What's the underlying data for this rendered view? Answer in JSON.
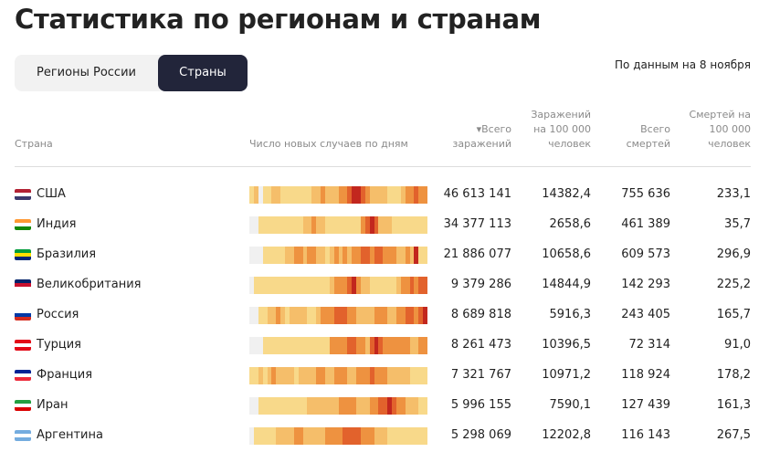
{
  "title": "Статистика по регионам и странам",
  "tabs": [
    {
      "label": "Регионы России"
    },
    {
      "label": "Страны"
    }
  ],
  "as_of": "По данным на 8 ноября",
  "headers": {
    "country": "Страна",
    "chart": "Число новых случаев по дням",
    "total": "▾Всего заражений",
    "per100k": "Заражений на 100 000 человек",
    "deaths": "Всего смертей",
    "deaths100k": "Смертей на 100 000 человек"
  },
  "colors": {
    "levels": [
      "#f0f0f0",
      "#f8d98a",
      "#f5be6a",
      "#ee9240",
      "#e2622c",
      "#c2271e"
    ]
  },
  "rows": [
    {
      "country": "США",
      "flag": [
        "#b22234",
        "#fff",
        "#3c3b6e"
      ],
      "total": "46 613 141",
      "per100k": "14382,4",
      "deaths": "755 636",
      "deaths100k": "233,1",
      "heat": [
        1,
        2,
        0,
        1,
        1,
        2,
        2,
        1,
        1,
        1,
        1,
        1,
        1,
        1,
        2,
        2,
        3,
        2,
        2,
        2,
        3,
        3,
        4,
        5,
        5,
        4,
        3,
        2,
        2,
        2,
        2,
        1,
        1,
        1,
        2,
        3,
        3,
        4,
        3,
        3
      ]
    },
    {
      "country": "Индия",
      "flag": [
        "#ff9933",
        "#fff",
        "#138808"
      ],
      "total": "34 377 113",
      "per100k": "2658,6",
      "deaths": "461 389",
      "deaths100k": "35,7",
      "heat": [
        0,
        0,
        1,
        1,
        1,
        1,
        1,
        1,
        1,
        1,
        1,
        1,
        2,
        2,
        3,
        2,
        2,
        1,
        1,
        1,
        1,
        1,
        1,
        1,
        1,
        3,
        4,
        5,
        4,
        2,
        2,
        2,
        1,
        1,
        1,
        1,
        1,
        1,
        1,
        1
      ]
    },
    {
      "country": "Бразилия",
      "flag": [
        "#009c3b",
        "#ffdf00",
        "#002776"
      ],
      "total": "21 886 077",
      "per100k": "10658,6",
      "deaths": "609 573",
      "deaths100k": "296,9",
      "heat": [
        0,
        0,
        0,
        1,
        1,
        1,
        1,
        1,
        2,
        2,
        3,
        3,
        2,
        3,
        3,
        2,
        2,
        1,
        2,
        3,
        2,
        3,
        2,
        3,
        3,
        4,
        4,
        3,
        4,
        4,
        3,
        3,
        3,
        2,
        2,
        3,
        2,
        5,
        1,
        1
      ]
    },
    {
      "country": "Великобритания",
      "flag": [
        "#012169",
        "#c8102e",
        "#fff"
      ],
      "total": "9 379 286",
      "per100k": "14844,9",
      "deaths": "142 293",
      "deaths100k": "225,2",
      "heat": [
        0,
        1,
        1,
        1,
        1,
        1,
        1,
        1,
        1,
        1,
        1,
        1,
        1,
        1,
        1,
        1,
        1,
        1,
        2,
        3,
        3,
        3,
        4,
        5,
        3,
        2,
        2,
        1,
        1,
        1,
        1,
        1,
        1,
        2,
        3,
        3,
        4,
        3,
        4,
        4
      ]
    },
    {
      "country": "Россия",
      "flag": [
        "#fff",
        "#0039a6",
        "#d52b1e"
      ],
      "total": "8 689 818",
      "per100k": "5916,3",
      "deaths": "243 405",
      "deaths100k": "165,7",
      "heat": [
        0,
        0,
        1,
        1,
        2,
        2,
        3,
        2,
        1,
        2,
        2,
        2,
        2,
        1,
        1,
        2,
        3,
        3,
        3,
        4,
        4,
        4,
        3,
        3,
        2,
        2,
        2,
        2,
        3,
        3,
        3,
        2,
        2,
        3,
        3,
        4,
        4,
        3,
        4,
        5
      ]
    },
    {
      "country": "Турция",
      "flag": [
        "#e30a17",
        "#fff",
        "#e30a17"
      ],
      "total": "8 261 473",
      "per100k": "10396,5",
      "deaths": "72 314",
      "deaths100k": "91,0",
      "heat": [
        0,
        0,
        0,
        1,
        1,
        1,
        1,
        1,
        1,
        1,
        1,
        1,
        1,
        1,
        1,
        1,
        1,
        1,
        3,
        3,
        3,
        3,
        4,
        4,
        3,
        3,
        2,
        4,
        5,
        4,
        3,
        3,
        3,
        3,
        3,
        3,
        2,
        2,
        3,
        3
      ]
    },
    {
      "country": "Франция",
      "flag": [
        "#002395",
        "#fff",
        "#ed2939"
      ],
      "total": "7 321 767",
      "per100k": "10971,2",
      "deaths": "118 924",
      "deaths100k": "178,2",
      "heat": [
        1,
        1,
        2,
        1,
        2,
        3,
        2,
        2,
        2,
        2,
        1,
        2,
        2,
        2,
        2,
        3,
        3,
        2,
        2,
        3,
        3,
        3,
        2,
        2,
        3,
        3,
        3,
        4,
        3,
        3,
        3,
        2,
        2,
        2,
        2,
        2,
        1,
        1,
        1,
        1
      ]
    },
    {
      "country": "Иран",
      "flag": [
        "#239f40",
        "#fff",
        "#da0000"
      ],
      "total": "5 996 155",
      "per100k": "7590,1",
      "deaths": "127 439",
      "deaths100k": "161,3",
      "heat": [
        0,
        0,
        1,
        1,
        1,
        1,
        1,
        1,
        1,
        1,
        1,
        1,
        1,
        2,
        2,
        2,
        2,
        2,
        2,
        2,
        3,
        3,
        3,
        3,
        2,
        2,
        2,
        3,
        3,
        4,
        4,
        5,
        4,
        3,
        3,
        2,
        2,
        2,
        1,
        1
      ]
    },
    {
      "country": "Аргентина",
      "flag": [
        "#74acdf",
        "#fff",
        "#74acdf"
      ],
      "total": "5 298 069",
      "per100k": "12202,8",
      "deaths": "116 143",
      "deaths100k": "267,5",
      "heat": [
        0,
        1,
        1,
        1,
        1,
        1,
        2,
        2,
        2,
        2,
        3,
        3,
        2,
        2,
        2,
        2,
        2,
        3,
        3,
        3,
        3,
        4,
        4,
        4,
        4,
        3,
        3,
        3,
        2,
        2,
        2,
        1,
        1,
        1,
        1,
        1,
        1,
        1,
        1,
        1
      ]
    }
  ]
}
